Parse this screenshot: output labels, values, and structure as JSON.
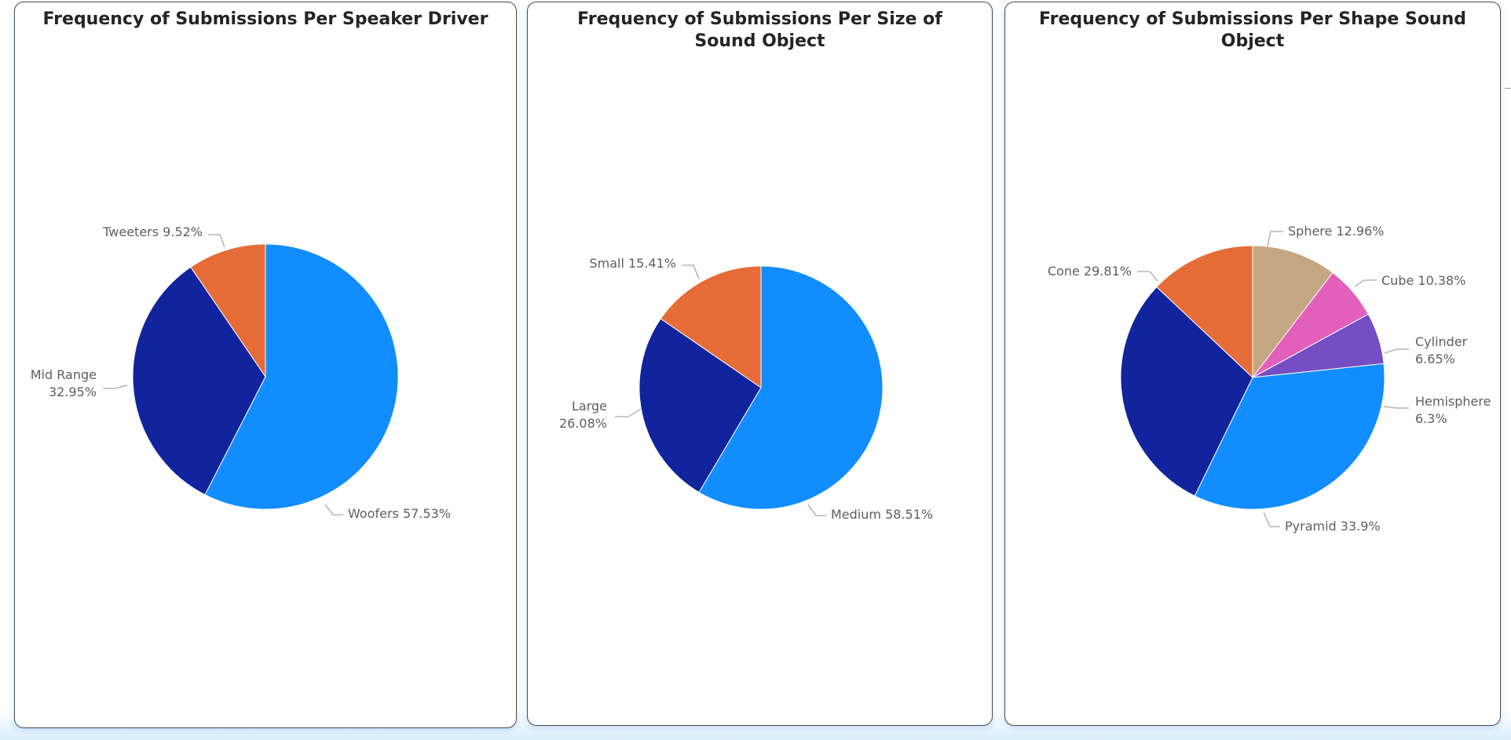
{
  "colors": {
    "light_blue": "#118dff",
    "dark_blue": "#12239e",
    "orange": "#e66c37",
    "tan": "#c5a682",
    "pink": "#e35fbc",
    "purple": "#744ec2"
  },
  "chart_data": [
    {
      "type": "pie",
      "title": "Frequency of Submissions Per Speaker Driver",
      "slices": [
        {
          "name": "Woofers",
          "value": 57.53,
          "label": "Woofers 57.53%",
          "color": "#118dff"
        },
        {
          "name": "Mid Range",
          "value": 32.95,
          "label": "Mid Range 32.95%",
          "color": "#12239e"
        },
        {
          "name": "Tweeters",
          "value": 9.52,
          "label": "Tweeters 9.52%",
          "color": "#e66c37"
        }
      ]
    },
    {
      "type": "pie",
      "title": "Frequency of Submissions Per Size of Sound Object",
      "slices": [
        {
          "name": "Medium",
          "value": 58.51,
          "label": "Medium 58.51%",
          "color": "#118dff"
        },
        {
          "name": "Large",
          "value": 26.08,
          "label": "Large 26.08%",
          "color": "#12239e"
        },
        {
          "name": "Small",
          "value": 15.41,
          "label": "Small 15.41%",
          "color": "#e66c37"
        }
      ]
    },
    {
      "type": "pie",
      "title": "Frequency of Submissions Per Shape Sound Object",
      "slices": [
        {
          "name": "Cube",
          "value": 10.38,
          "label": "Cube 10.38%",
          "color": "#c5a682"
        },
        {
          "name": "Cylinder",
          "value": 6.65,
          "label": "Cylinder 6.65%",
          "color": "#e35fbc"
        },
        {
          "name": "Hemisphere",
          "value": 6.3,
          "label": "Hemisphere 6.3%",
          "color": "#744ec2"
        },
        {
          "name": "Pyramid",
          "value": 33.9,
          "label": "Pyramid 33.9%",
          "color": "#118dff"
        },
        {
          "name": "Cone",
          "value": 29.81,
          "label": "Cone 29.81%",
          "color": "#12239e"
        },
        {
          "name": "Sphere",
          "value": 12.96,
          "label": "Sphere 12.96%",
          "color": "#e66c37"
        }
      ]
    }
  ]
}
